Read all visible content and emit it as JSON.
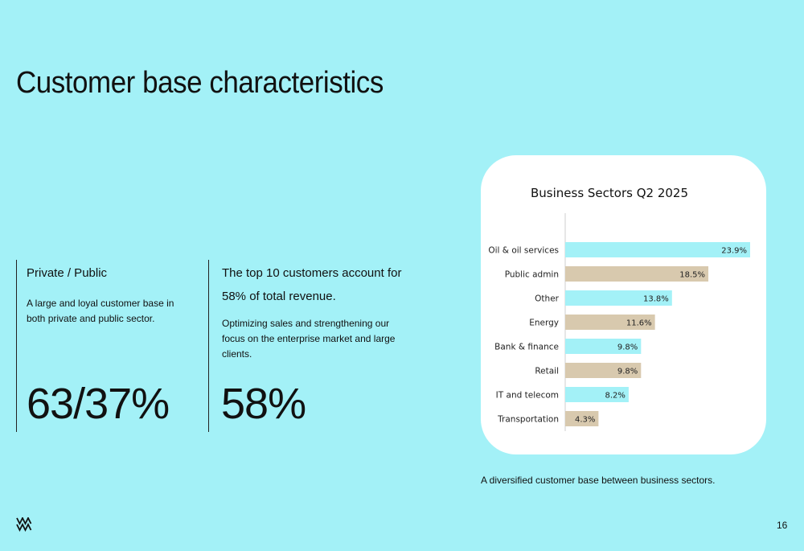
{
  "page": {
    "title": "Customer base characteristics",
    "page_number": "16"
  },
  "left_column": {
    "heading": "Private / Public",
    "body": "A large and loyal customer base in both private and public sector.",
    "big_number": "63/37%"
  },
  "middle_column": {
    "heading": "The top 10 customers account for 58% of total revenue.",
    "body": "Optimizing sales and strengthening our focus on the enterprise market and large clients.",
    "big_number": "58%"
  },
  "caption": "A diversified customer base between business sectors.",
  "colors": {
    "background": "#a3f1f7",
    "bar_cyan": "#a3f1f7",
    "bar_tan": "#d8c9ae",
    "card": "#ffffff"
  },
  "chart_data": {
    "type": "bar",
    "orientation": "horizontal",
    "title": "Business Sectors Q2 2025",
    "categories": [
      "Oil & oil services",
      "Public admin",
      "Other",
      "Energy",
      "Bank & finance",
      "Retail",
      "IT and telecom",
      "Transportation"
    ],
    "values": [
      23.9,
      18.5,
      13.8,
      11.6,
      9.8,
      9.8,
      8.2,
      4.3
    ],
    "labels": [
      "23.9%",
      "18.5%",
      "13.8%",
      "11.6%",
      "9.8%",
      "9.8%",
      "8.2%",
      "4.3%"
    ],
    "bar_colors": [
      "#a3f1f7",
      "#d8c9ae",
      "#a3f1f7",
      "#d8c9ae",
      "#a3f1f7",
      "#d8c9ae",
      "#a3f1f7",
      "#d8c9ae"
    ],
    "xlim": [
      0,
      23.9
    ],
    "xlabel": "",
    "ylabel": "",
    "grid": false,
    "legend": "none"
  }
}
